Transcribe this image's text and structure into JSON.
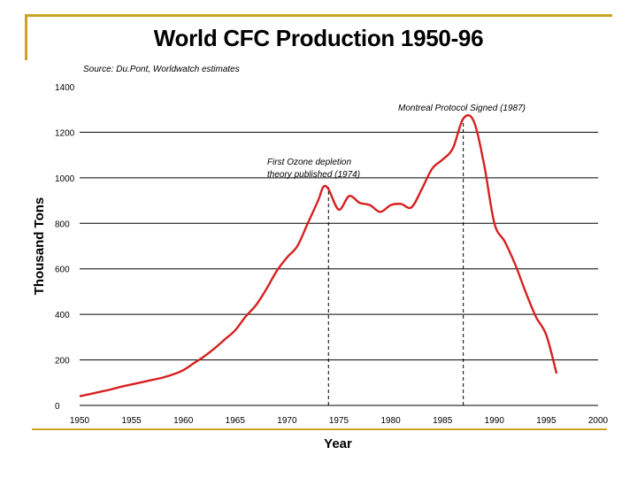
{
  "slide": {
    "title": "World CFC Production 1950-96"
  },
  "chart_data": {
    "type": "line",
    "title": "World CFC Production 1950-96",
    "source": "Source: Du.Pont, Worldwatch estimates",
    "xlabel": "Year",
    "ylabel": "Thousand Tons",
    "xlim": [
      1950,
      2000
    ],
    "ylim": [
      0,
      1400
    ],
    "xticks": [
      1950,
      1955,
      1960,
      1965,
      1970,
      1975,
      1980,
      1985,
      1990,
      1995,
      2000
    ],
    "yticks": [
      0,
      200,
      400,
      600,
      800,
      1000,
      1200,
      1400
    ],
    "grid": "horizontal",
    "series": [
      {
        "name": "World CFC Production",
        "color": "#d62020",
        "x": [
          1950,
          1951,
          1952,
          1953,
          1954,
          1955,
          1956,
          1957,
          1958,
          1959,
          1960,
          1961,
          1962,
          1963,
          1964,
          1965,
          1966,
          1967,
          1968,
          1969,
          1970,
          1971,
          1972,
          1973,
          1973.5,
          1974,
          1975,
          1976,
          1977,
          1978,
          1979,
          1980,
          1981,
          1982,
          1983,
          1984,
          1985,
          1986,
          1987,
          1988,
          1989,
          1990,
          1991,
          1992,
          1993,
          1994,
          1995,
          1996
        ],
        "values": [
          40,
          50,
          60,
          70,
          82,
          92,
          102,
          112,
          122,
          136,
          155,
          185,
          215,
          250,
          290,
          330,
          390,
          440,
          510,
          590,
          650,
          700,
          800,
          900,
          960,
          950,
          860,
          920,
          890,
          880,
          850,
          880,
          885,
          870,
          950,
          1040,
          1080,
          1130,
          1260,
          1250,
          1060,
          800,
          720,
          620,
          500,
          390,
          310,
          140
        ]
      }
    ],
    "annotations": [
      {
        "lines": [
          "First Ozone depletion",
          "theory published (1974)"
        ],
        "x": 1974
      },
      {
        "lines": [
          "Montreal Protocol Signed (1987)"
        ],
        "x": 1987
      }
    ]
  }
}
